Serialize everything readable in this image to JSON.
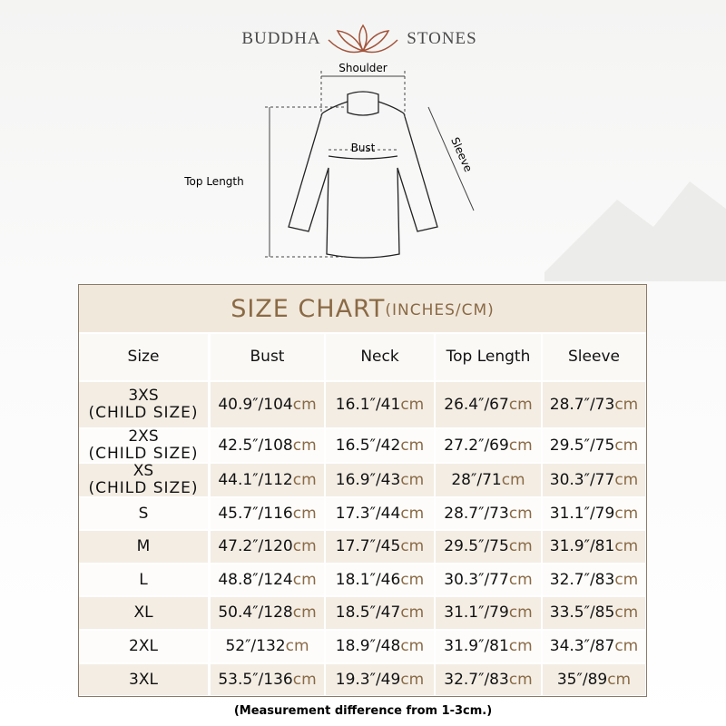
{
  "header": {
    "brand_left": "BUDDHA",
    "brand_right": "STONES"
  },
  "diagram": {
    "shoulder": "Shoulder",
    "bust": "Bust",
    "sleeve": "Sleeve",
    "top_length": "Top Length"
  },
  "table": {
    "title": "SIZE CHART",
    "title_unit": "(INCHES/CM)",
    "columns": [
      "Size",
      "Bust",
      "Neck",
      "Top Length",
      "Sleeve"
    ],
    "rows": [
      {
        "size": [
          "3XS",
          "(CHILD SIZE)"
        ],
        "cells": [
          [
            "40.9″/104",
            "cm"
          ],
          [
            "16.1″/41",
            "cm"
          ],
          [
            "26.4″/67",
            "cm"
          ],
          [
            "28.7″/73",
            "cm"
          ]
        ]
      },
      {
        "size": [
          "2XS",
          "(CHILD SIZE)"
        ],
        "cells": [
          [
            "42.5″/108",
            "cm"
          ],
          [
            "16.5″/42",
            "cm"
          ],
          [
            "27.2″/69",
            "cm"
          ],
          [
            "29.5″/75",
            "cm"
          ]
        ]
      },
      {
        "size": [
          "XS",
          "(CHILD SIZE)"
        ],
        "cells": [
          [
            "44.1″/112",
            "cm"
          ],
          [
            "16.9″/43",
            "cm"
          ],
          [
            "28″/71",
            "cm"
          ],
          [
            "30.3″/77",
            "cm"
          ]
        ]
      },
      {
        "size": [
          "S"
        ],
        "cells": [
          [
            "45.7″/116",
            "cm"
          ],
          [
            "17.3″/44",
            "cm"
          ],
          [
            "28.7″/73",
            "cm"
          ],
          [
            "31.1″/79",
            "cm"
          ]
        ]
      },
      {
        "size": [
          "M"
        ],
        "cells": [
          [
            "47.2″/120",
            "cm"
          ],
          [
            "17.7″/45",
            "cm"
          ],
          [
            "29.5″/75",
            "cm"
          ],
          [
            "31.9″/81",
            "cm"
          ]
        ]
      },
      {
        "size": [
          "L"
        ],
        "cells": [
          [
            "48.8″/124",
            "cm"
          ],
          [
            "18.1″/46",
            "cm"
          ],
          [
            "30.3″/77",
            "cm"
          ],
          [
            "32.7″/83",
            "cm"
          ]
        ]
      },
      {
        "size": [
          "XL"
        ],
        "cells": [
          [
            "50.4″/128",
            "cm"
          ],
          [
            "18.5″/47",
            "cm"
          ],
          [
            "31.1″/79",
            "cm"
          ],
          [
            "33.5″/85",
            "cm"
          ]
        ]
      },
      {
        "size": [
          "2XL"
        ],
        "cells": [
          [
            "52″/132",
            "cm"
          ],
          [
            "18.9″/48",
            "cm"
          ],
          [
            "31.9″/81",
            "cm"
          ],
          [
            "34.3″/87",
            "cm"
          ]
        ]
      },
      {
        "size": [
          "3XL"
        ],
        "cells": [
          [
            "53.5″/136",
            "cm"
          ],
          [
            "19.3″/49",
            "cm"
          ],
          [
            "32.7″/83",
            "cm"
          ],
          [
            "35″/89",
            "cm"
          ]
        ]
      }
    ]
  },
  "footnote": "(Measurement difference from 1-3cm.)"
}
